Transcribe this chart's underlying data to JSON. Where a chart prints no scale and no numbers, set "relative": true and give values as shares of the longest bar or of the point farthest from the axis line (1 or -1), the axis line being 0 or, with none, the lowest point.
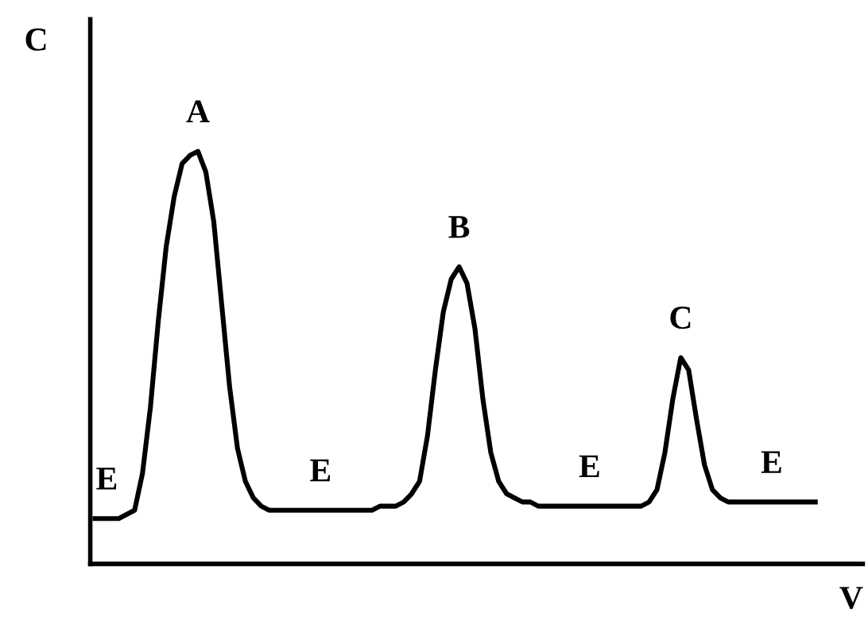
{
  "chart_data": {
    "type": "line",
    "relative": true,
    "xlabel": "V",
    "ylabel": "C",
    "color": "#000000",
    "grid": false,
    "legend": false,
    "marker": "none",
    "line_style": "solid",
    "categories": [
      null,
      null,
      null,
      null,
      null,
      null,
      null,
      null,
      null,
      null,
      null,
      null,
      null,
      null,
      null,
      null,
      null,
      null,
      null,
      null,
      null,
      null,
      null,
      null,
      null,
      null,
      null,
      null,
      null,
      null,
      null,
      null,
      null,
      null,
      null,
      null,
      null,
      null,
      null,
      null,
      null,
      null,
      null,
      null,
      null,
      null,
      null,
      null,
      null,
      null,
      null,
      null,
      null,
      null,
      null,
      null,
      null,
      null,
      null,
      null,
      null,
      null,
      null,
      null,
      null,
      null,
      null,
      null,
      null,
      null,
      null,
      null,
      null,
      null,
      null,
      null,
      null,
      null,
      null,
      null,
      null,
      null,
      null,
      null,
      null,
      null,
      null,
      null,
      null,
      null,
      null,
      null
    ],
    "values": [
      0.11,
      0.11,
      0.11,
      0.11,
      0.12,
      0.13,
      0.22,
      0.38,
      0.59,
      0.77,
      0.89,
      0.97,
      0.99,
      1.0,
      0.95,
      0.83,
      0.63,
      0.43,
      0.28,
      0.2,
      0.16,
      0.14,
      0.13,
      0.13,
      0.13,
      0.13,
      0.13,
      0.13,
      0.13,
      0.13,
      0.13,
      0.13,
      0.13,
      0.13,
      0.13,
      0.13,
      0.14,
      0.14,
      0.14,
      0.15,
      0.17,
      0.2,
      0.31,
      0.47,
      0.61,
      0.69,
      0.72,
      0.68,
      0.57,
      0.4,
      0.27,
      0.2,
      0.17,
      0.16,
      0.15,
      0.15,
      0.14,
      0.14,
      0.14,
      0.14,
      0.14,
      0.14,
      0.14,
      0.14,
      0.14,
      0.14,
      0.14,
      0.14,
      0.14,
      0.14,
      0.15,
      0.18,
      0.27,
      0.4,
      0.5,
      0.47,
      0.35,
      0.24,
      0.18,
      0.16,
      0.15,
      0.15,
      0.15,
      0.15,
      0.15,
      0.15,
      0.15,
      0.15,
      0.15,
      0.15,
      0.15,
      0.15
    ],
    "annotations": [
      {
        "text": "E",
        "y": 0.11
      },
      {
        "text": "A",
        "y": 1.0
      },
      {
        "text": "E",
        "y": 0.13
      },
      {
        "text": "B",
        "y": 0.72
      },
      {
        "text": "E",
        "y": 0.14
      },
      {
        "text": "C",
        "y": 0.5
      },
      {
        "text": "E",
        "y": 0.15
      }
    ]
  }
}
